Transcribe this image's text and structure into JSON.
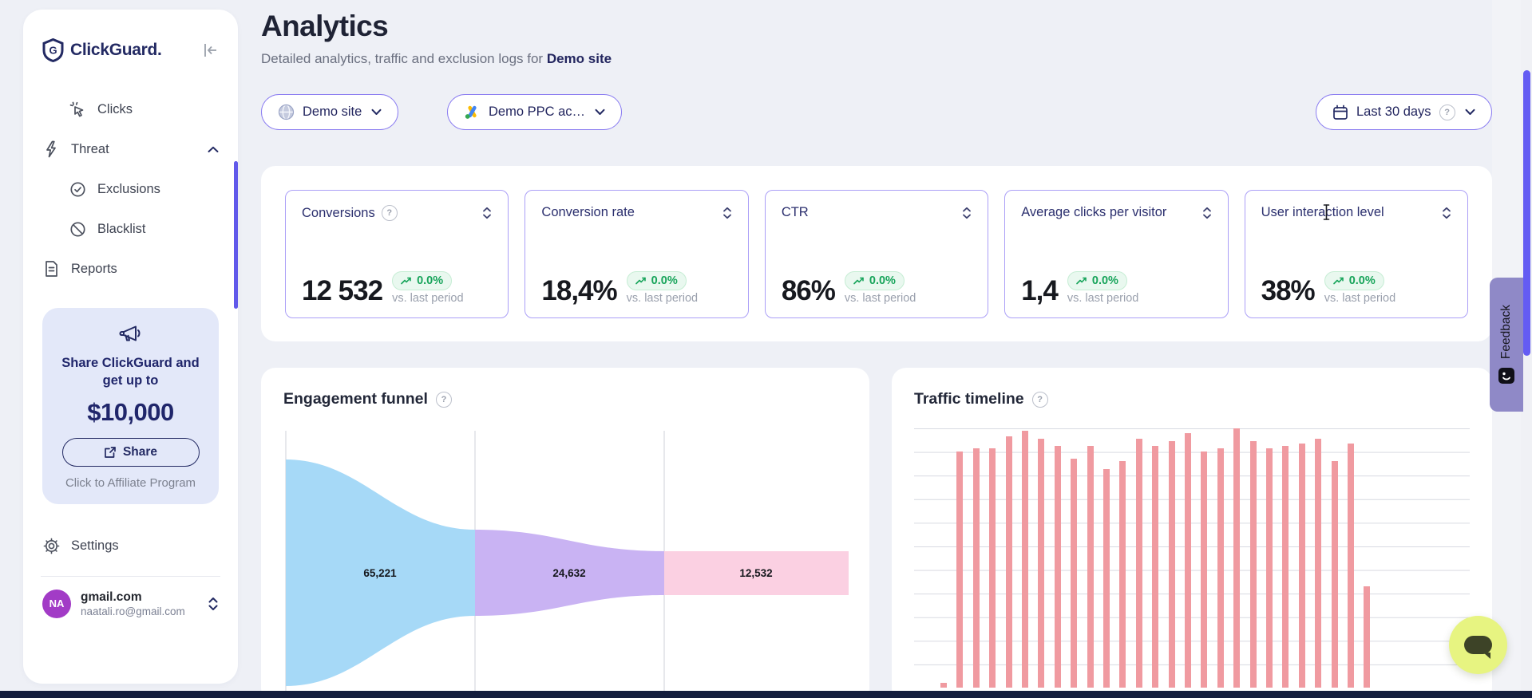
{
  "app": {
    "name": "ClickGuard."
  },
  "sidebar": {
    "nav": [
      {
        "label": "Clicks"
      },
      {
        "label": "Threat"
      },
      {
        "label": "Exclusions"
      },
      {
        "label": "Blacklist"
      },
      {
        "label": "Reports"
      }
    ],
    "promo": {
      "line1": "Share ClickGuard and",
      "line2": "get up to",
      "amount": "$10,000",
      "share_label": "Share",
      "affiliate_label": "Click to Affiliate Program"
    },
    "settings_label": "Settings",
    "user": {
      "initials": "NA",
      "name": "gmail.com",
      "email": "naatali.ro@gmail.com"
    }
  },
  "header": {
    "title": "Analytics",
    "subtitle": "Detailed analytics, traffic and exclusion logs for",
    "subtitle_target": "Demo site"
  },
  "filters": {
    "site": "Demo site",
    "ppc_account": "Demo PPC ac…",
    "date_range": "Last 30 days"
  },
  "kpis": [
    {
      "label": "Conversions",
      "value": "12 532",
      "change": "0.0%",
      "compare": "vs. last period"
    },
    {
      "label": "Conversion rate",
      "value": "18,4%",
      "change": "0.0%",
      "compare": "vs. last period"
    },
    {
      "label": "CTR",
      "value": "86%",
      "change": "0.0%",
      "compare": "vs. last period"
    },
    {
      "label": "Average clicks per visitor",
      "value": "1,4",
      "change": "0.0%",
      "compare": "vs. last period"
    },
    {
      "label": "User interaction level",
      "value": "38%",
      "change": "0.0%",
      "compare": "vs. last period"
    }
  ],
  "feedback_label": "Feedback",
  "colors": {
    "accent_indigo": "#6159ea",
    "pill_border": "#8a7cf1",
    "kpi_border": "#ab9ff7",
    "badge_green": "#17a45a",
    "badge_bg": "#e9f8ef",
    "promo_bg": "#e3e8f9",
    "avatar_purple": "#a23bc6",
    "feedback_tab": "#8f89c7",
    "chat_button": "#e7f481",
    "bottom_strip": "#141d3d",
    "navy_text": "#232a63"
  },
  "chart_data": [
    {
      "type": "area",
      "subtype": "funnel",
      "title": "Engagement funnel",
      "stages": [
        {
          "label": "65,221",
          "value": 65221,
          "color": "#a6d9f7"
        },
        {
          "label": "24,632",
          "value": 24632,
          "color": "#c9b3f3"
        },
        {
          "label": "12,532",
          "value": 12532,
          "color": "#fbd0e2"
        }
      ],
      "gridlines": "vertical"
    },
    {
      "type": "bar",
      "title": "Traffic timeline",
      "values": [
        2,
        93,
        94,
        94,
        99,
        101,
        98,
        95,
        90,
        95,
        86,
        89,
        98,
        95,
        97,
        100,
        93,
        94,
        102,
        97,
        94,
        95,
        96,
        98,
        89,
        96,
        40
      ],
      "ylim": [
        0,
        102
      ],
      "unit": "relative-height-percent",
      "color": "#f09aa0",
      "gridlines": "horizontal",
      "x_tick_labels_visible": false
    }
  ]
}
